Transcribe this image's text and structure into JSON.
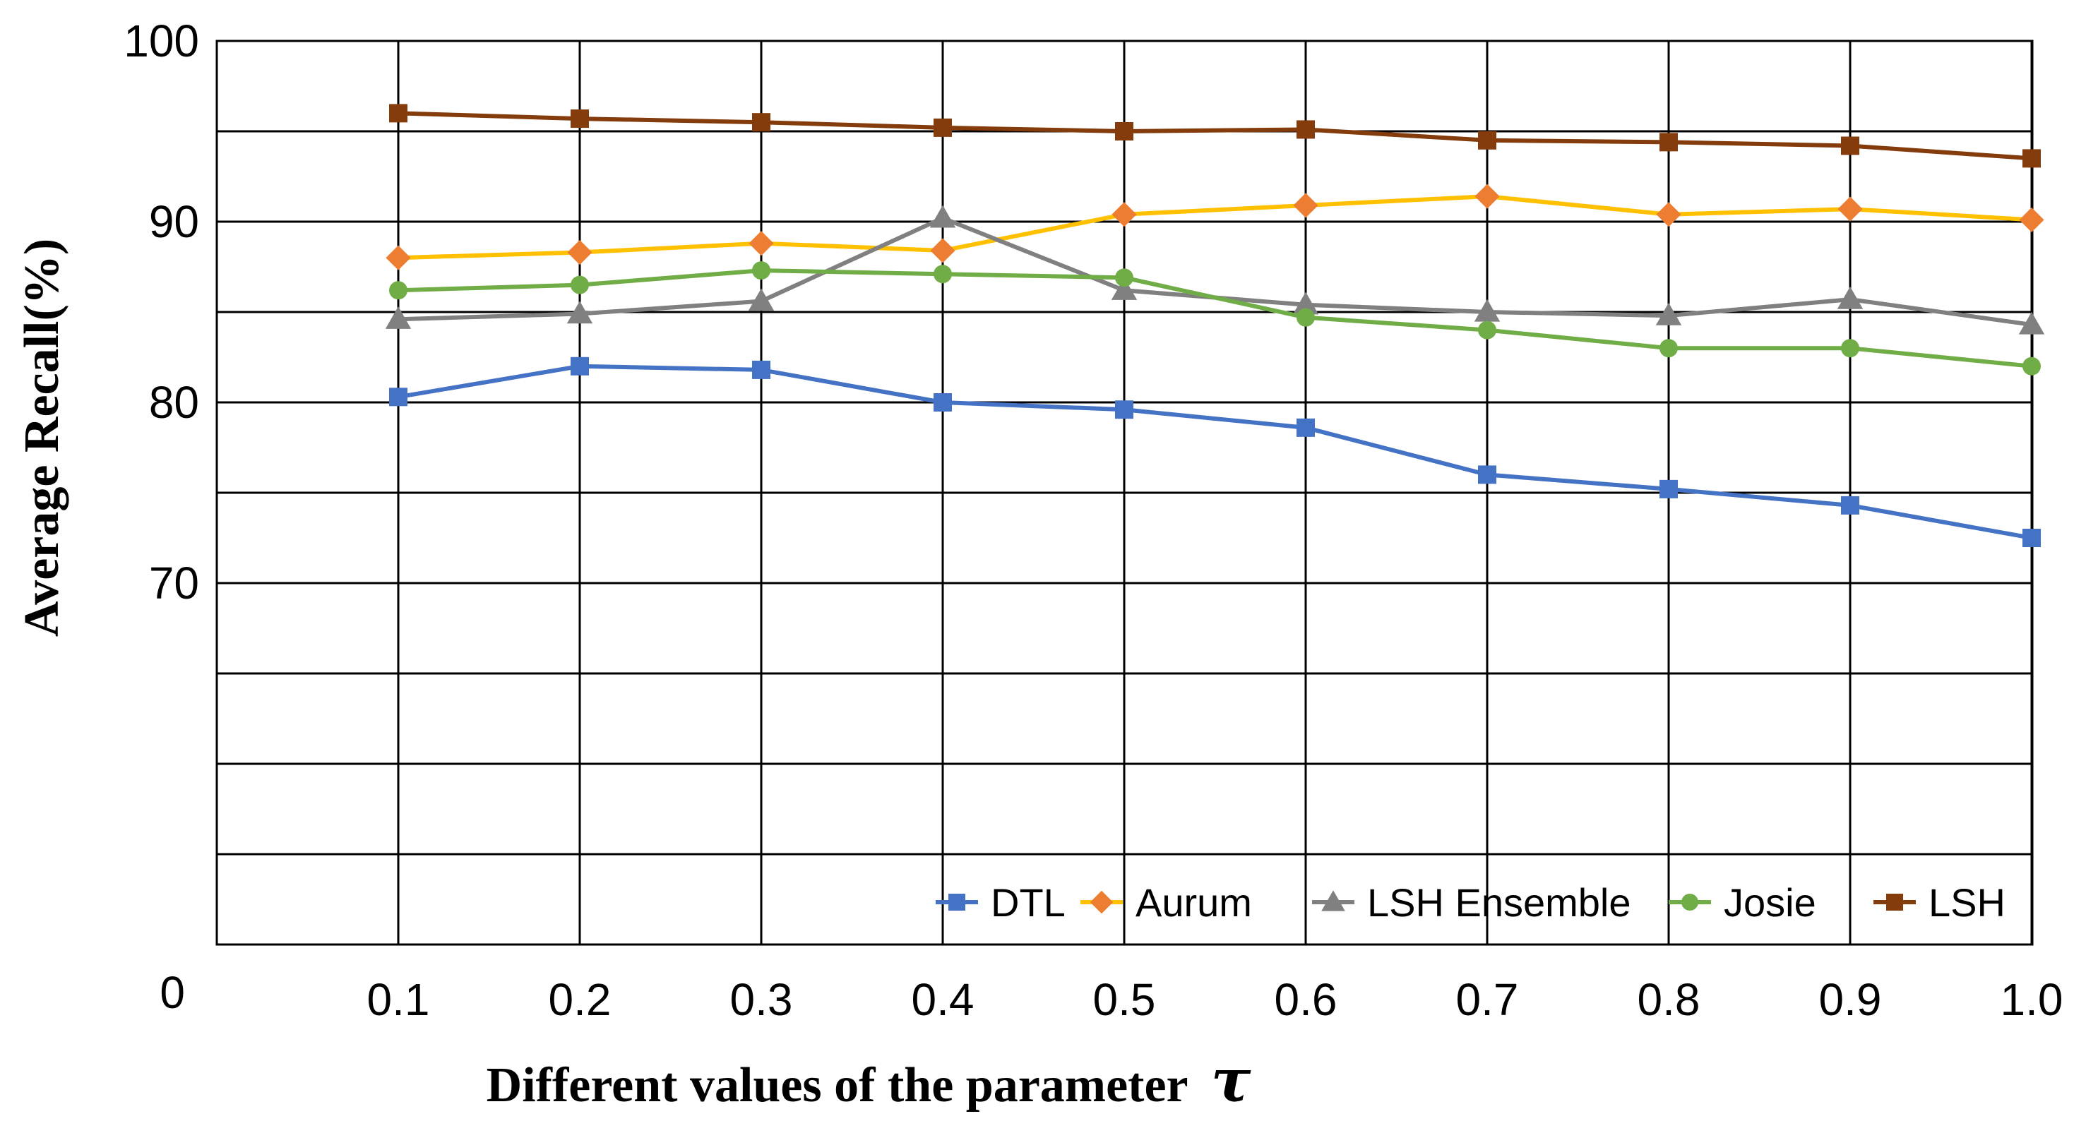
{
  "chart_data": {
    "type": "line",
    "title": "",
    "xlabel": "Different values of the parameter",
    "xlabel_symbol": "τ",
    "ylabel": "Average Recall(%)",
    "x": [
      "0.1",
      "0.2",
      "0.3",
      "0.4",
      "0.5",
      "0.6",
      "0.7",
      "0.8",
      "0.9",
      "1.0"
    ],
    "y_display_range": [
      50,
      100
    ],
    "y_gridline_step": 5,
    "y_tick_values": [
      70,
      80,
      90,
      100
    ],
    "y_bottom_label": "0",
    "grid": true,
    "legend_position": "bottom-right inside plot",
    "series": [
      {
        "name": "DTL",
        "line_color": "#4472C4",
        "marker_color": "#4472C4",
        "marker": "square",
        "values": [
          80.3,
          82.0,
          81.8,
          80.0,
          79.6,
          78.6,
          76.0,
          75.2,
          74.3,
          72.5
        ]
      },
      {
        "name": "Aurum",
        "line_color": "#FFC000",
        "marker_color": "#ED7D31",
        "marker": "diamond",
        "values": [
          88.0,
          88.3,
          88.8,
          88.4,
          90.4,
          90.9,
          91.4,
          90.4,
          90.7,
          90.1
        ]
      },
      {
        "name": "LSH Ensemble",
        "line_color": "#808080",
        "marker_color": "#808080",
        "marker": "triangle",
        "values": [
          84.6,
          84.9,
          85.6,
          90.2,
          86.2,
          85.4,
          85.0,
          84.8,
          85.7,
          84.3
        ]
      },
      {
        "name": "Josie",
        "line_color": "#70AD47",
        "marker_color": "#70AD47",
        "marker": "circle",
        "values": [
          86.2,
          86.5,
          87.3,
          87.1,
          86.9,
          84.7,
          84.0,
          83.0,
          83.0,
          82.0
        ]
      },
      {
        "name": "LSH",
        "line_color": "#843C0C",
        "marker_color": "#843C0C",
        "marker": "square",
        "values": [
          96.0,
          95.7,
          95.5,
          95.2,
          95.0,
          95.1,
          94.5,
          94.4,
          94.2,
          93.5
        ]
      }
    ]
  }
}
